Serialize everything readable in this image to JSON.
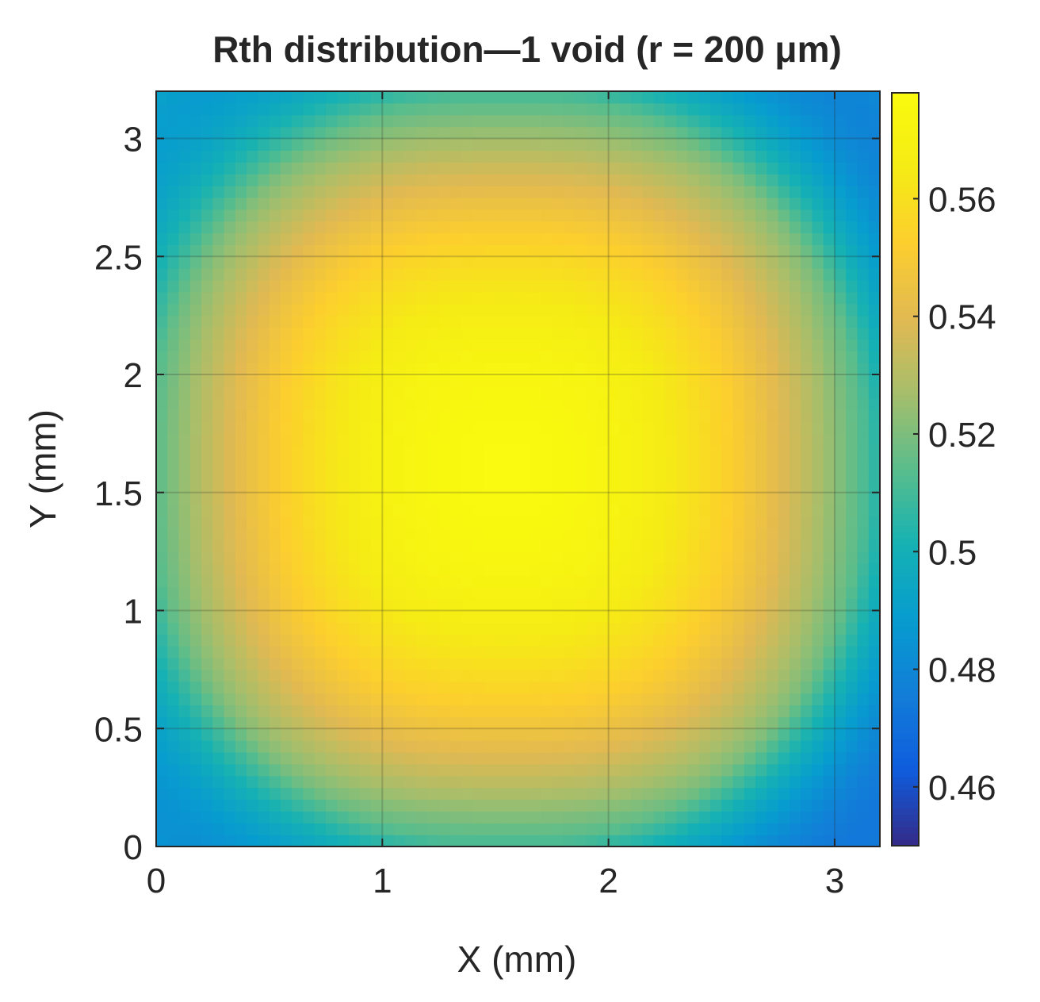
{
  "chart_data": {
    "type": "heatmap",
    "title": "Rth distribution—1 void (r = 200 μm)",
    "xlabel": "X (mm)",
    "ylabel": "Y (mm)",
    "xlim": [
      0,
      3.2
    ],
    "ylim": [
      0,
      3.2
    ],
    "xticks": [
      0,
      1,
      2,
      3
    ],
    "xtick_labels": [
      "0",
      "1",
      "2",
      "3"
    ],
    "yticks": [
      0,
      0.5,
      1,
      1.5,
      2,
      2.5,
      3
    ],
    "ytick_labels": [
      "0",
      "0.5",
      "1",
      "1.5",
      "2",
      "2.5",
      "3"
    ],
    "grid": true,
    "colormap": "parula",
    "colorbar": {
      "clim": [
        0.45,
        0.578
      ],
      "ticks": [
        0.46,
        0.48,
        0.5,
        0.52,
        0.54,
        0.56
      ],
      "tick_labels": [
        "0.46",
        "0.48",
        "0.5",
        "0.52",
        "0.54",
        "0.56"
      ],
      "location": "right"
    },
    "field": {
      "description_units": "Rth",
      "peak": {
        "x": 1.55,
        "y": 1.6,
        "value": 0.577
      },
      "edge_center_value": 0.51,
      "corner_values": {
        "bottom-left": 0.487,
        "top-left": 0.494,
        "bottom-right": 0.474,
        "top-right": 0.48
      }
    }
  }
}
